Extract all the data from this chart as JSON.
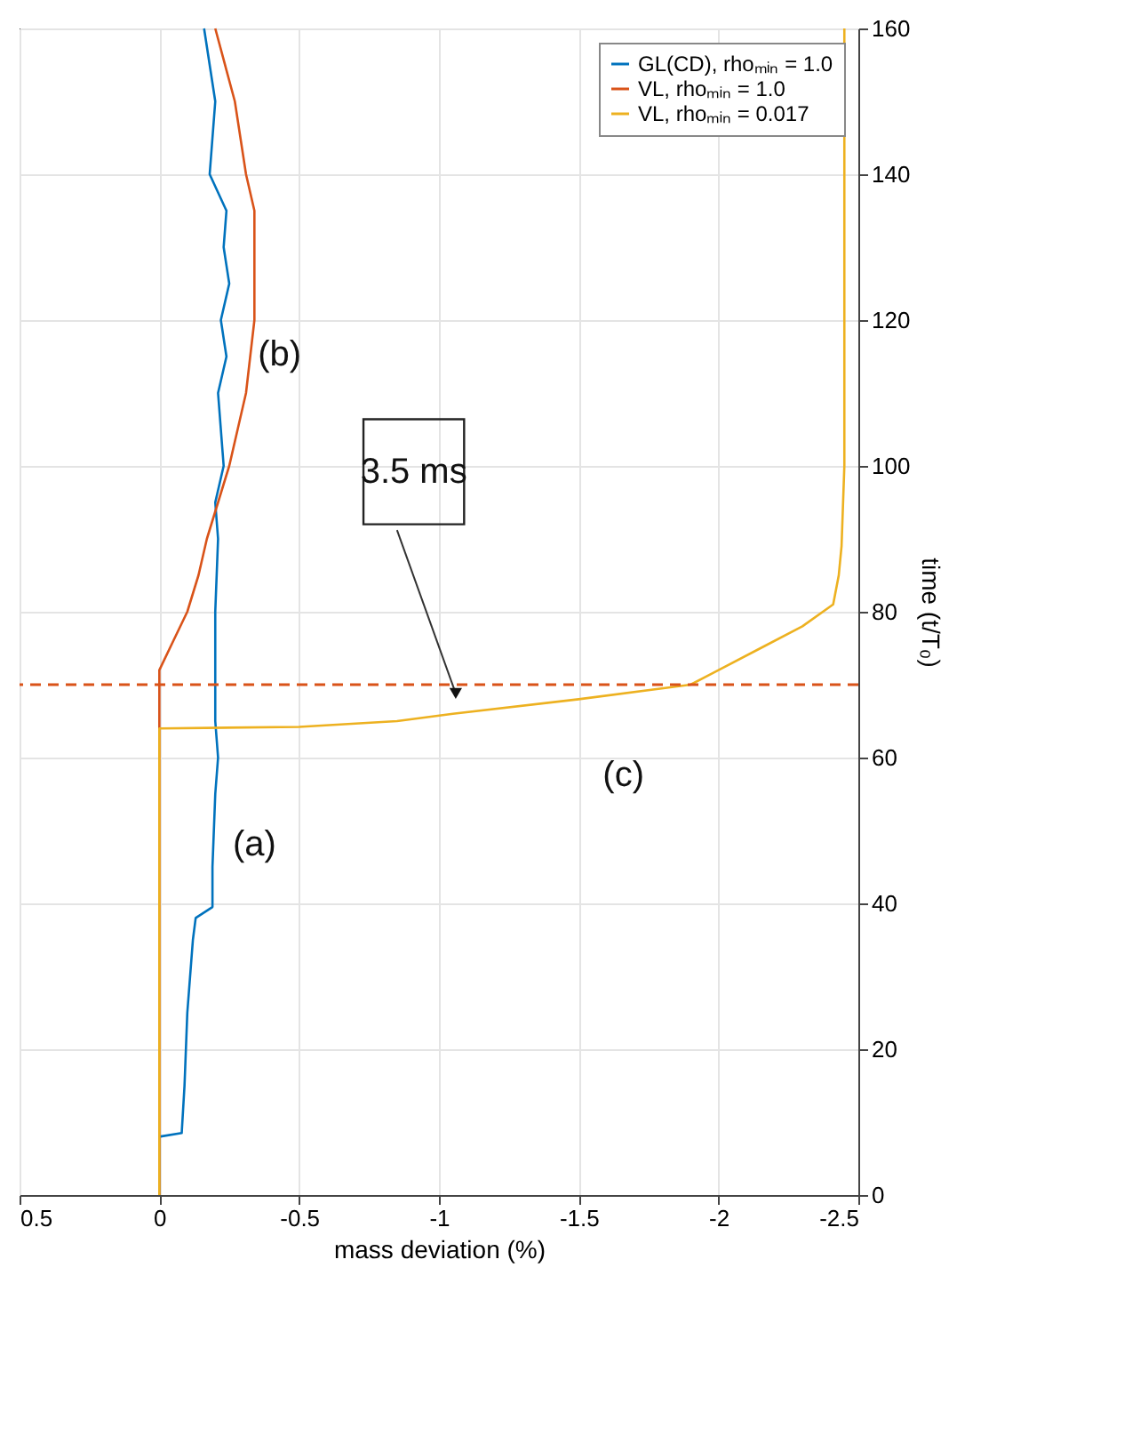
{
  "chart_data": {
    "type": "line",
    "xlabel": "mass deviation (%)",
    "ylabel": "time (t/T₀)",
    "xlim": [
      0.5,
      -2.5
    ],
    "xticks": [
      0.5,
      0,
      -0.5,
      -1,
      -1.5,
      -2,
      -2.5
    ],
    "ylim": [
      0,
      160
    ],
    "yticks": [
      0,
      20,
      40,
      60,
      80,
      100,
      120,
      140,
      160
    ],
    "grid": true,
    "legend": "top right",
    "series": [
      {
        "name": "GL(CD), rhoₘᵢₙ = 1.0",
        "color": "#0072bd",
        "x": [
          0,
          0,
          -0.08,
          -0.09,
          -0.1,
          -0.12,
          -0.13,
          -0.19,
          -0.19,
          -0.2,
          -0.21,
          -0.2,
          -0.2,
          -0.2,
          -0.21,
          -0.2,
          -0.23,
          -0.21,
          -0.24,
          -0.22,
          -0.25,
          -0.23,
          -0.24,
          -0.18,
          -0.2,
          -0.16
        ],
        "values": [
          0,
          8,
          8.5,
          15,
          25,
          35,
          38,
          39.5,
          45,
          55,
          60,
          65,
          70,
          80,
          90,
          95,
          100,
          110,
          115,
          120,
          125,
          130,
          135,
          140,
          150,
          160
        ]
      },
      {
        "name": "VL, rhoₘᵢₙ = 1.0",
        "color": "#d95319",
        "x": [
          0,
          0,
          -0.05,
          -0.1,
          -0.14,
          -0.17,
          -0.21,
          -0.25,
          -0.28,
          -0.31,
          -0.34,
          -0.34,
          -0.34,
          -0.31,
          -0.27,
          -0.2
        ],
        "values": [
          0,
          72,
          76,
          80,
          85,
          90,
          95,
          100,
          105,
          110,
          120,
          130,
          135,
          140,
          150,
          160
        ]
      },
      {
        "name": "VL, rhoₘᵢₙ = 0.017",
        "color": "#edb120",
        "x": [
          0,
          0,
          -0.5,
          -0.85,
          -1.05,
          -1.5,
          -1.9,
          -2.0,
          -2.15,
          -2.3,
          -2.41,
          -2.43,
          -2.44,
          -2.45,
          -2.45,
          -2.45,
          -2.45
        ],
        "values": [
          0,
          64,
          64.2,
          65,
          66,
          68,
          70,
          72,
          75,
          78,
          81,
          85,
          89,
          100,
          120,
          140,
          160
        ]
      }
    ],
    "ref_lines": [
      {
        "axis": "y",
        "value": 70,
        "color": "#d95319",
        "line_style": "dashed"
      }
    ],
    "annotations": [
      "(a)",
      "(b)",
      "(c)",
      "3.5 ms"
    ]
  }
}
